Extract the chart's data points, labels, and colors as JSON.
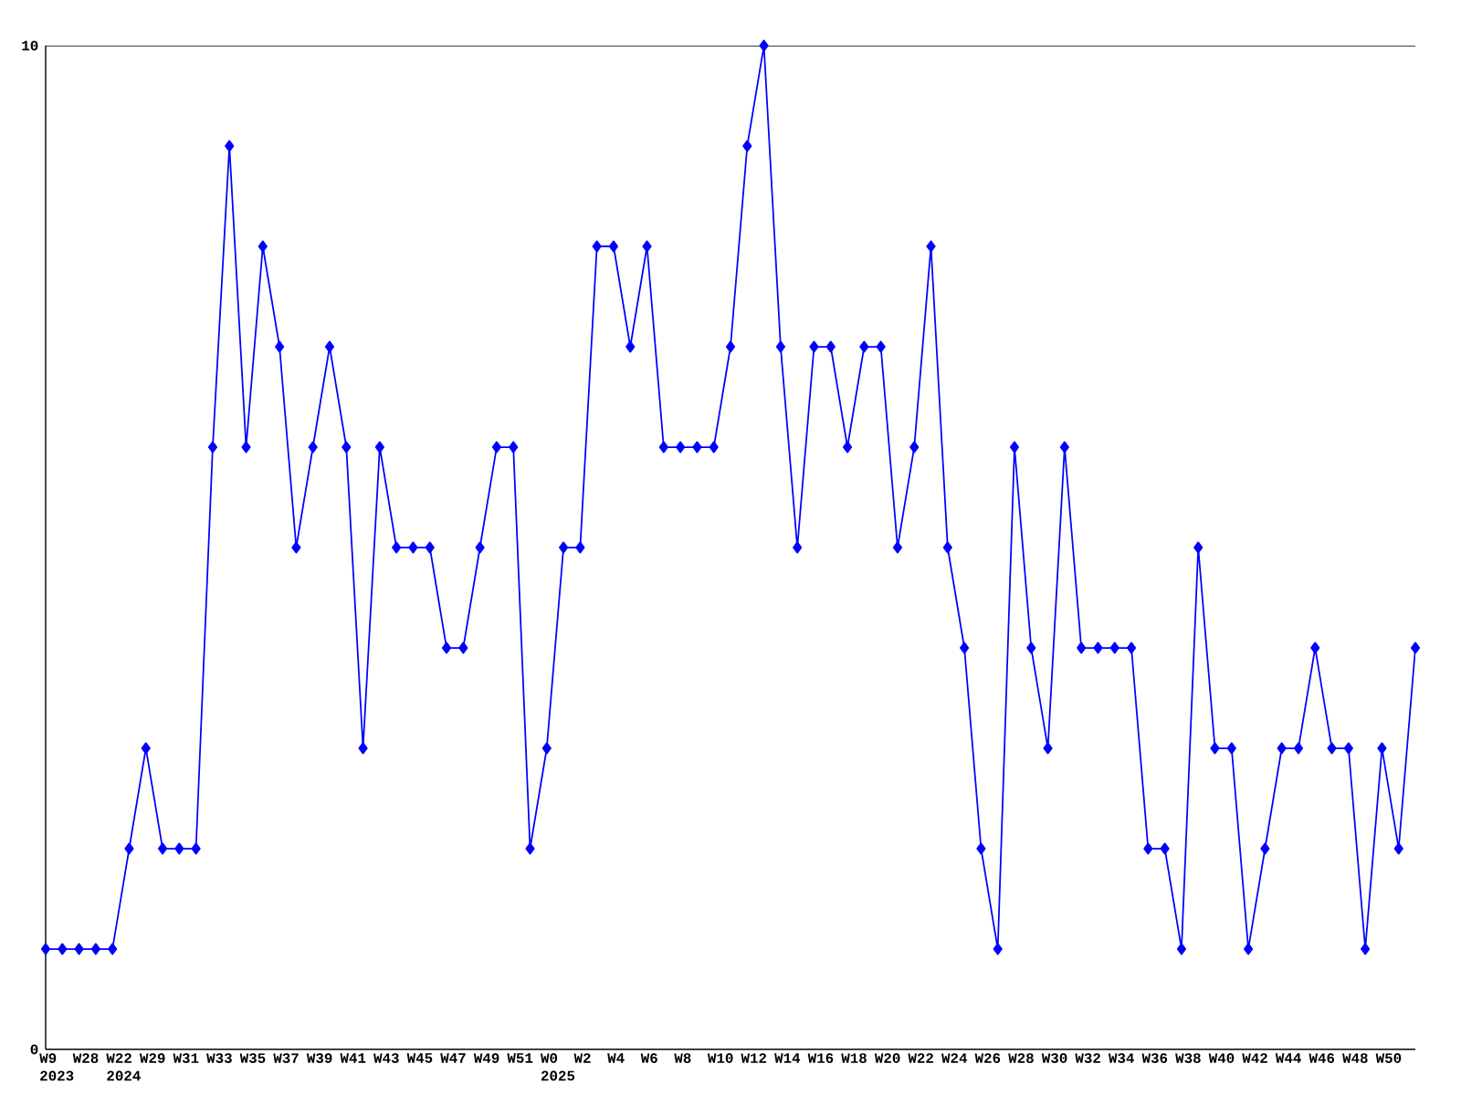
{
  "chart_data": {
    "type": "line",
    "categories": [
      "W9 2023",
      null,
      "W28",
      null,
      "W22 2024",
      null,
      "W29",
      null,
      "W31",
      null,
      "W33",
      null,
      "W35",
      null,
      "W37",
      null,
      "W39",
      null,
      "W41",
      null,
      "W43",
      null,
      "W45",
      null,
      "W47",
      null,
      "W49",
      null,
      "W51",
      null,
      "W0 2025",
      null,
      "W2",
      null,
      "W4",
      null,
      "W6",
      null,
      "W8",
      null,
      "W10",
      null,
      "W12",
      null,
      "W14",
      null,
      "W16",
      null,
      "W18",
      null,
      "W20",
      null,
      "W22",
      null,
      "W24",
      null,
      "W26",
      null,
      "W28",
      null,
      "W30",
      null,
      "W32",
      null,
      "W34",
      null,
      "W36",
      null,
      "W38",
      null,
      "W40",
      null,
      "W42",
      null,
      "W44",
      null,
      "W46",
      null,
      "W48",
      null,
      "W50",
      null,
      null
    ],
    "values": [
      1,
      1,
      1,
      1,
      1,
      2,
      3,
      2,
      2,
      2,
      6,
      9,
      6,
      8,
      7,
      5,
      6,
      7,
      6,
      3,
      6,
      5,
      5,
      5,
      4,
      4,
      5,
      6,
      6,
      2,
      3,
      5,
      5,
      8,
      8,
      7,
      8,
      6,
      6,
      6,
      6,
      7,
      9,
      10,
      7,
      5,
      7,
      7,
      6,
      7,
      7,
      5,
      6,
      8,
      5,
      4,
      2,
      1,
      6,
      4,
      3,
      6,
      4,
      4,
      4,
      4,
      2,
      2,
      1,
      5,
      3,
      3,
      1,
      2,
      3,
      3,
      4,
      3,
      3,
      1,
      3,
      2,
      4
    ],
    "color": "#0000ff",
    "marker": "diamond",
    "line_style": "solid",
    "ylim": [
      0,
      10
    ],
    "yticks": [
      0,
      10
    ]
  }
}
